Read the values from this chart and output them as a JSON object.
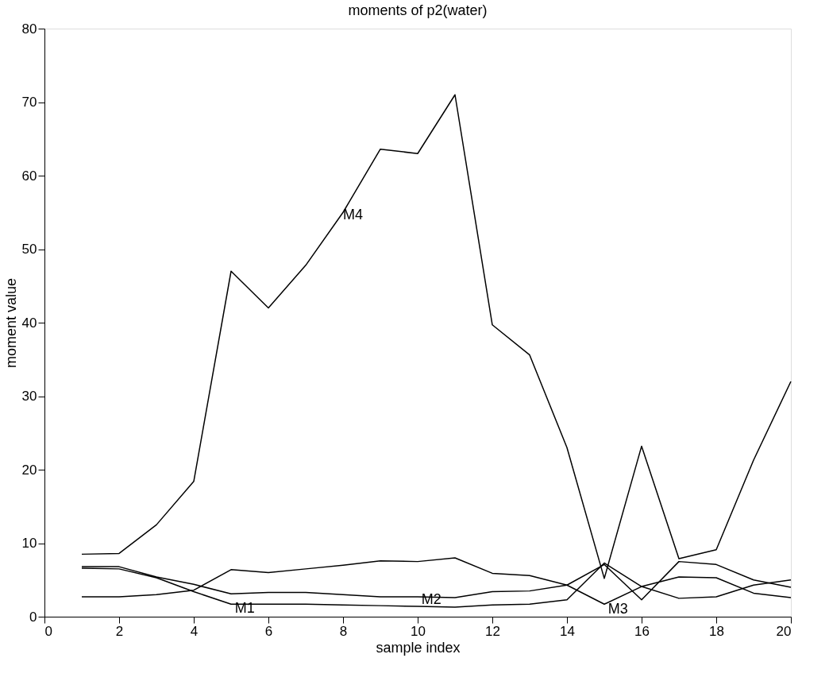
{
  "chart_data": {
    "type": "line",
    "title": "moments of p2(water)",
    "xlabel": "sample index",
    "ylabel": "moment value",
    "x": [
      1,
      2,
      3,
      4,
      5,
      6,
      7,
      8,
      9,
      10,
      11,
      12,
      13,
      14,
      15,
      16,
      17,
      18,
      19,
      20
    ],
    "series": [
      {
        "color": "#000000",
        "values": [
          6.6,
          6.5,
          5.3,
          3.4,
          1.7,
          1.7,
          1.7,
          1.6,
          1.5,
          1.4,
          1.3,
          1.6,
          1.7,
          2.3,
          7.3,
          4.1,
          2.5,
          2.7,
          4.3,
          5.0
        ]
      },
      {
        "color": "#000000",
        "values": [
          6.8,
          6.8,
          5.4,
          4.4,
          3.1,
          3.3,
          3.3,
          3.0,
          2.7,
          2.7,
          2.6,
          3.4,
          3.5,
          4.3,
          7.1,
          2.3,
          7.5,
          7.1,
          5.0,
          4.0
        ]
      },
      {
        "color": "#000000",
        "values": [
          2.7,
          2.7,
          3.0,
          3.6,
          6.4,
          6.0,
          6.5,
          7.0,
          7.6,
          7.5,
          8.0,
          5.9,
          5.6,
          4.3,
          1.7,
          4.1,
          5.4,
          5.3,
          3.2,
          2.6
        ]
      },
      {
        "color": "#000000",
        "values": [
          8.5,
          8.6,
          12.5,
          18.4,
          47,
          42,
          47.8,
          55,
          63.6,
          63,
          71,
          39.7,
          35.6,
          23,
          5.2,
          23.2,
          7.9,
          9.1,
          21.3,
          32
        ]
      }
    ],
    "annotations": [
      {
        "text": "M1",
        "x": 5.1,
        "y": 1.5
      },
      {
        "text": "M2",
        "x": 10.1,
        "y": 2.7
      },
      {
        "text": "M3",
        "x": 15.1,
        "y": 1.4
      },
      {
        "text": "M4",
        "x": 8,
        "y": 55
      }
    ],
    "xlim": [
      0,
      20
    ],
    "ylim": [
      0,
      80
    ],
    "xticks": [
      0,
      2,
      4,
      6,
      8,
      10,
      12,
      14,
      16,
      18,
      20
    ],
    "yticks": [
      0,
      10,
      20,
      30,
      40,
      50,
      60,
      70,
      80
    ],
    "grid": false,
    "marker": "none",
    "line_style": "solid"
  }
}
